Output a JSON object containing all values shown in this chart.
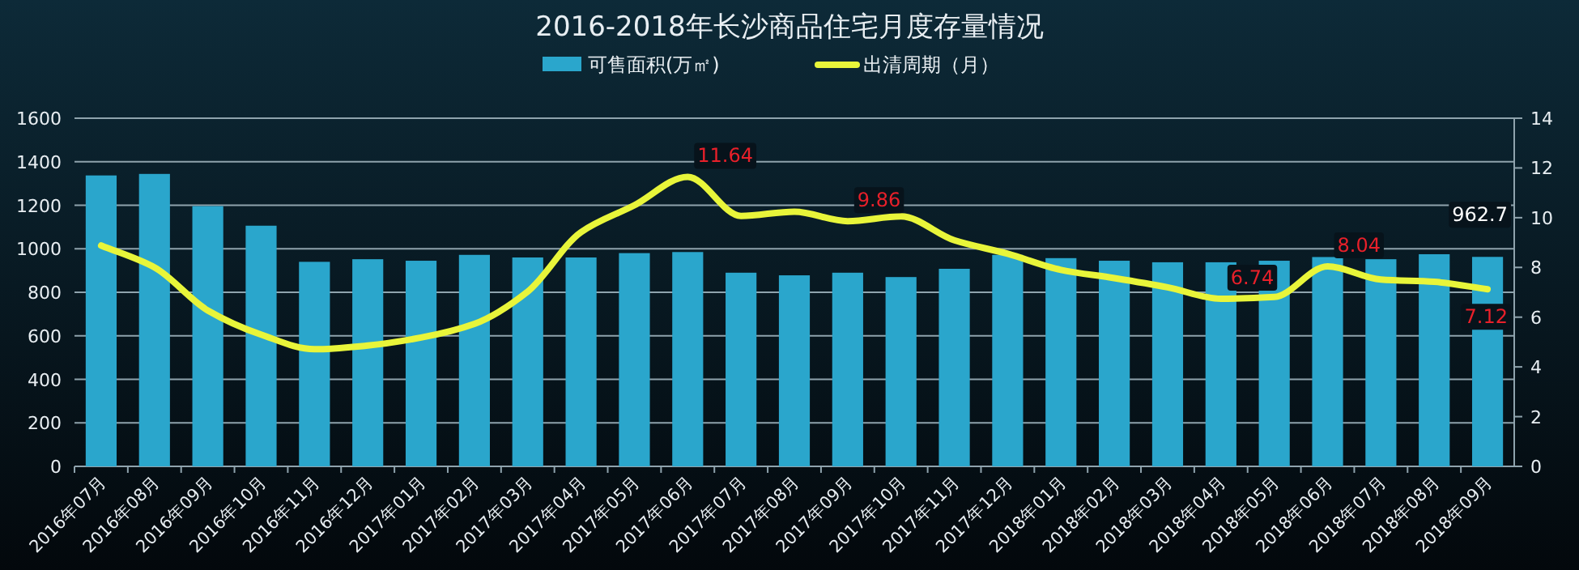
{
  "chart_data": {
    "type": "bar",
    "title": "2016-2018年长沙商品住宅月度存量情况",
    "categories": [
      "2016年07月",
      "2016年08月",
      "2016年09月",
      "2016年10月",
      "2016年11月",
      "2016年12月",
      "2017年01月",
      "2017年02月",
      "2017年03月",
      "2017年04月",
      "2017年05月",
      "2017年06月",
      "2017年07月",
      "2017年08月",
      "2017年09月",
      "2017年10月",
      "2017年11月",
      "2017年12月",
      "2018年01月",
      "2018年02月",
      "2018年03月",
      "2018年04月",
      "2018年05月",
      "2018年06月",
      "2018年07月",
      "2018年08月",
      "2018年09月"
    ],
    "series": [
      {
        "name": "可售面积(万㎡)",
        "color": "#2aa6cc",
        "values": [
          1337,
          1344,
          1196,
          1106,
          940,
          952,
          945,
          972,
          960,
          960,
          980,
          985,
          890,
          878,
          890,
          870,
          908,
          972,
          957,
          945,
          938,
          938,
          945,
          962,
          952,
          975,
          962.7
        ],
        "value_labels": [
          null,
          null,
          null,
          null,
          null,
          null,
          null,
          null,
          null,
          null,
          null,
          null,
          null,
          null,
          null,
          null,
          null,
          null,
          null,
          null,
          null,
          null,
          null,
          null,
          null,
          null,
          "962.7"
        ]
      },
      {
        "name": "出清周期（月）",
        "type": "line",
        "axis": "y2",
        "color": "#e8f53a",
        "values": [
          8.88,
          8.0,
          6.27,
          5.3,
          4.71,
          4.86,
          5.18,
          5.73,
          7.03,
          9.42,
          10.5,
          11.64,
          10.07,
          10.24,
          9.86,
          10.05,
          9.09,
          8.55,
          7.9,
          7.57,
          7.2,
          6.74,
          6.81,
          8.04,
          7.51,
          7.42,
          7.12
        ],
        "value_labels": [
          null,
          null,
          null,
          null,
          null,
          null,
          null,
          null,
          null,
          null,
          null,
          "11.64",
          null,
          null,
          "9.86",
          null,
          null,
          null,
          null,
          null,
          null,
          "6.74",
          null,
          "8.04",
          null,
          null,
          "7.12"
        ]
      }
    ],
    "ylim": [
      0,
      1600
    ],
    "yticks": [
      0,
      200,
      400,
      600,
      800,
      1000,
      1200,
      1400,
      1600
    ],
    "y2lim": [
      0,
      14
    ],
    "y2ticks": [
      0,
      2,
      4,
      6,
      8,
      10,
      12,
      14
    ],
    "grid": "y",
    "legend": "top",
    "marker": "none",
    "line_style": "solid"
  }
}
